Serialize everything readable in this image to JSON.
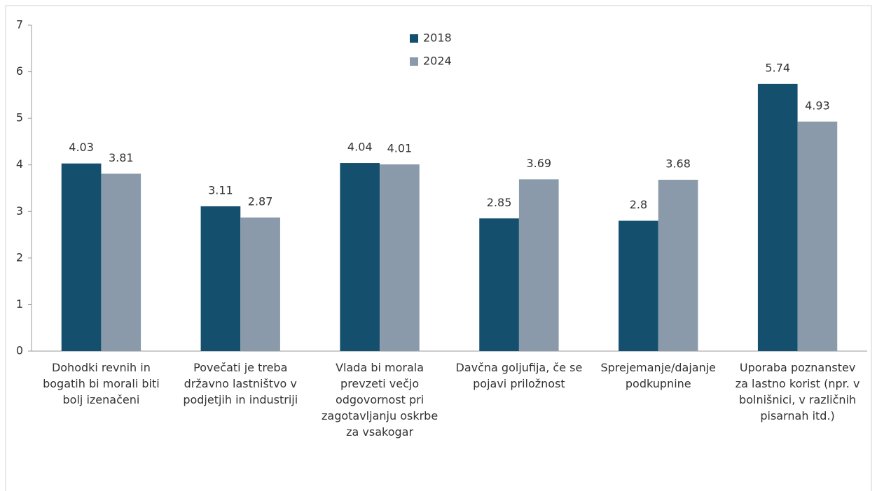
{
  "chart_data": {
    "type": "bar",
    "categories": [
      "Dohodki revnih in bogatih bi morali biti bolj izenačeni",
      "Povečati je treba državno lastništvo v podjetjih in industriji",
      "Vlada bi morala prevzeti večjo odgovornost pri zagotavljanju oskrbe za vsakogar",
      "Davčna goljufija, če se pojavi priložnost",
      "Sprejemanje/dajanje podkupnine",
      "Uporaba poznanstev za lastno korist (npr. v bolnišnici, v različnih pisarnah itd.)"
    ],
    "series": [
      {
        "name": "2018",
        "color": "#14506e",
        "values": [
          4.03,
          3.11,
          4.04,
          2.85,
          2.8,
          5.74
        ]
      },
      {
        "name": "2024",
        "color": "#8a9aaa",
        "values": [
          3.81,
          2.87,
          4.01,
          3.69,
          3.68,
          4.93
        ]
      }
    ],
    "ylim": [
      0,
      7
    ],
    "yticks": [
      0,
      1,
      2,
      3,
      4,
      5,
      6,
      7
    ],
    "grid": false,
    "legend": "top"
  }
}
